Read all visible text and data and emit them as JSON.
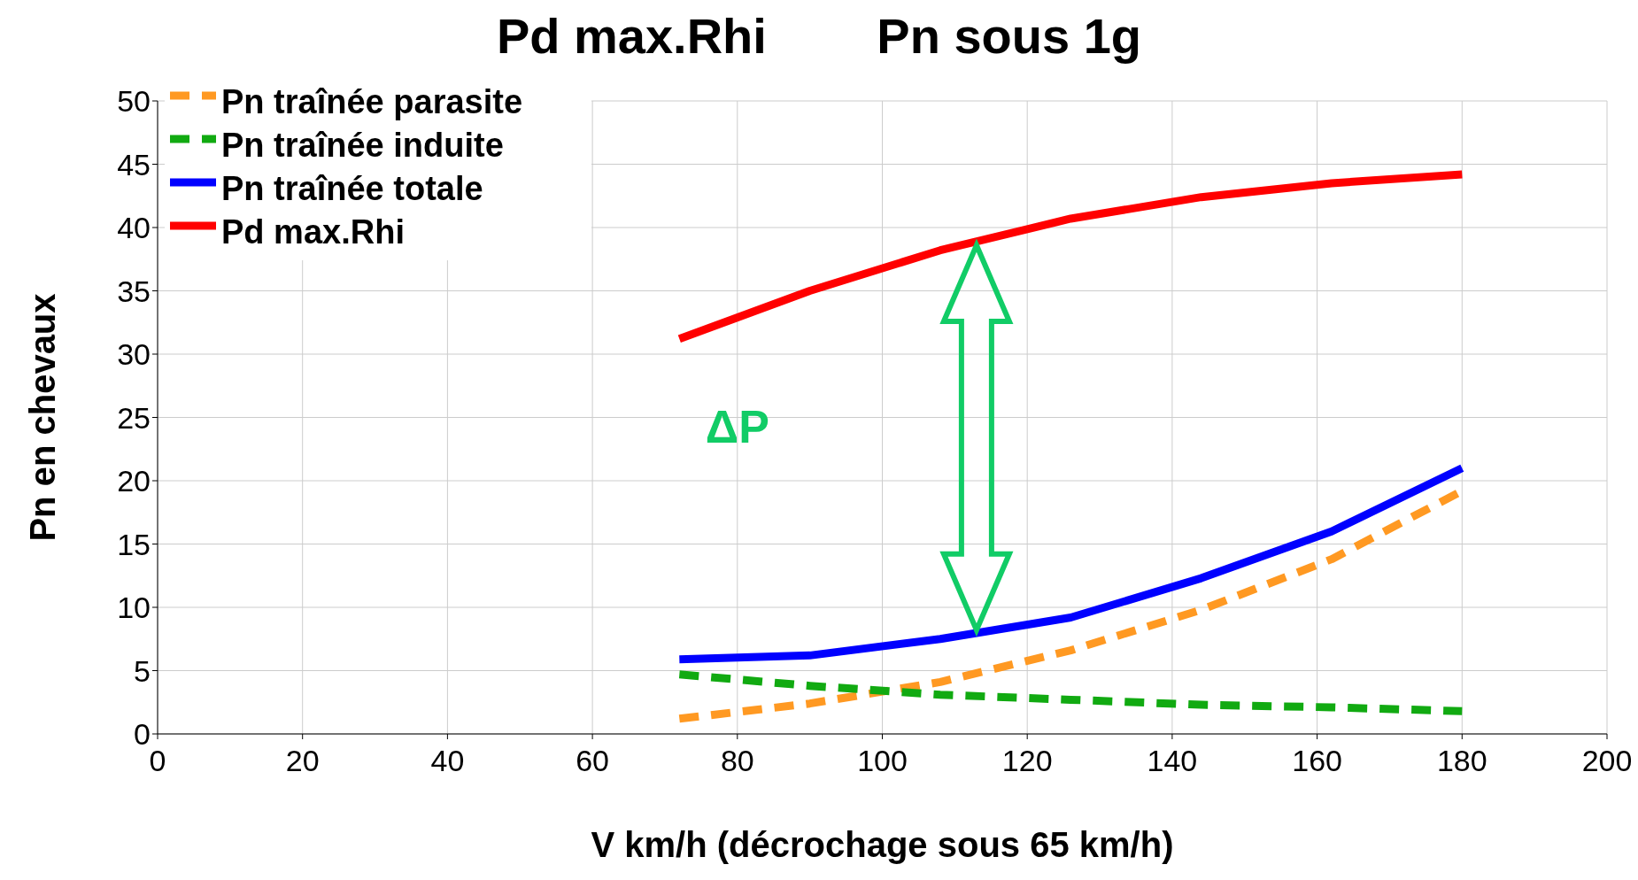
{
  "chart_data": {
    "type": "line",
    "title": "Pd max.Rhi        Pn sous 1g",
    "xlabel": "V km/h (décrochage sous 65 km/h)",
    "ylabel": "Pn en chevaux",
    "x": [
      72,
      90,
      108,
      126,
      144,
      162,
      180
    ],
    "series": [
      {
        "name": "Pn traînée parasite",
        "color": "#ff9922",
        "line_style": "dashed",
        "values": [
          1.2,
          2.4,
          4.1,
          6.6,
          9.8,
          13.8,
          19.2
        ]
      },
      {
        "name": "Pn traînée induite",
        "color": "#11aa11",
        "line_style": "dashed",
        "values": [
          4.7,
          3.8,
          3.1,
          2.7,
          2.3,
          2.1,
          1.8
        ]
      },
      {
        "name": "Pn traînée totale",
        "color": "#0000ff",
        "line_style": "solid",
        "values": [
          5.9,
          6.2,
          7.5,
          9.2,
          12.3,
          16,
          21
        ]
      },
      {
        "name": "Pd max.Rhi",
        "color": "#ff0000",
        "line_style": "solid",
        "values": [
          31.2,
          35,
          38.2,
          40.7,
          42.4,
          43.5,
          44.2
        ]
      }
    ],
    "xlim": [
      0,
      200
    ],
    "xticks": [
      0,
      20,
      40,
      60,
      80,
      100,
      120,
      140,
      160,
      180,
      200
    ],
    "ylim": [
      0,
      50
    ],
    "yticks": [
      0,
      5,
      10,
      15,
      20,
      25,
      30,
      35,
      40,
      45,
      50
    ],
    "grid": true,
    "legend": "top left",
    "marker": "none",
    "annotations": [
      "ΔP"
    ]
  }
}
